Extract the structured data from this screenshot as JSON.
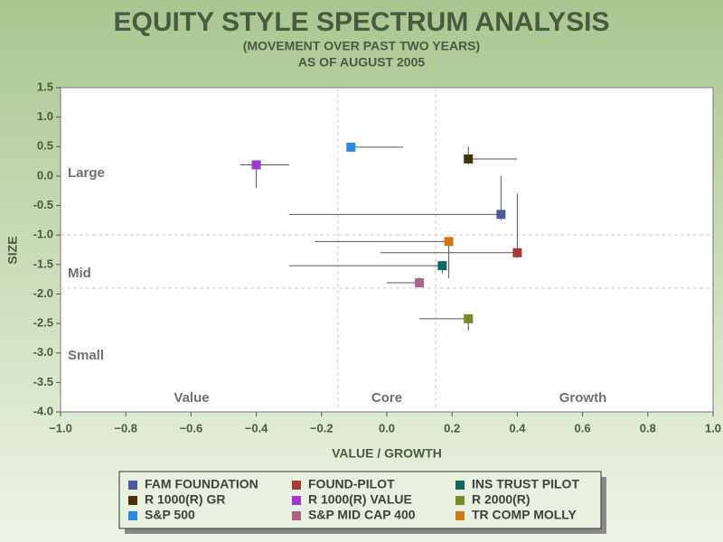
{
  "chart_data": {
    "type": "scatter",
    "title": "EQUITY STYLE SPECTRUM ANALYSIS",
    "subtitle": [
      "(MOVEMENT OVER PAST TWO YEARS)",
      "AS OF AUGUST 2005"
    ],
    "x_label": "VALUE / GROWTH",
    "y_label": "SIZE",
    "xlim": [
      -1.0,
      1.0
    ],
    "xticks": [
      {
        "value": -1.0,
        "label": "−1.0"
      },
      {
        "value": -0.8,
        "label": "−0.8"
      },
      {
        "value": -0.6,
        "label": "−0.6"
      },
      {
        "value": -0.4,
        "label": "−0.4"
      },
      {
        "value": -0.2,
        "label": "−0.2"
      },
      {
        "value": 0,
        "label": "0.0"
      },
      0.2,
      0.4,
      0.6,
      0.8,
      {
        "value": 1.0,
        "label": "1.0"
      }
    ],
    "ylim": [
      -4.0,
      1.5
    ],
    "yticks": [
      1.5,
      {
        "value": 1.0,
        "label": "1.0"
      },
      0.5,
      {
        "value": 0,
        "label": "0.0"
      },
      {
        "value": -0.5,
        "label": "-0.5"
      },
      {
        "value": -1.0,
        "label": "-1.0"
      },
      {
        "value": -1.5,
        "label": "-1.5"
      },
      {
        "value": -2.0,
        "label": "-2.0"
      },
      {
        "value": -2.5,
        "label": "-2.5"
      },
      {
        "value": -3.0,
        "label": "-3.0"
      },
      {
        "value": -3.5,
        "label": "-3.5"
      },
      {
        "value": -4.0,
        "label": "-4.0"
      }
    ],
    "reference_lines": {
      "x": [
        -0.15,
        0.15
      ],
      "y": [
        -1.0,
        -1.9
      ]
    },
    "size_regions": [
      "Large",
      "Mid",
      "Small"
    ],
    "style_regions": [
      "Value",
      "Core",
      "Growth"
    ],
    "series": [
      {
        "name": "FAM FOUNDATION",
        "color": "#4a5a9a",
        "x": 0.35,
        "y": -0.65,
        "xrange": [
          -0.3,
          0.35
        ],
        "yrange": [
          -0.75,
          0.0
        ]
      },
      {
        "name": "FOUND-PILOT",
        "color": "#a33a35",
        "x": 0.4,
        "y": -1.3,
        "xrange": [
          -0.02,
          0.4
        ],
        "yrange": [
          -1.39,
          -0.3
        ]
      },
      {
        "name": "INS TRUST PILOT",
        "color": "#106860",
        "x": 0.17,
        "y": -1.52,
        "xrange": [
          -0.3,
          0.17
        ],
        "yrange": [
          -1.65,
          -1.45
        ]
      },
      {
        "name": "R 1000(R) GR",
        "color": "#4a3210",
        "x": 0.25,
        "y": 0.29,
        "xrange": [
          0.25,
          0.4
        ],
        "yrange": [
          0.2,
          0.5
        ]
      },
      {
        "name": "R 1000(R) VALUE",
        "color": "#9a3ad0",
        "x": -0.4,
        "y": 0.19,
        "xrange": [
          -0.45,
          -0.3
        ],
        "yrange": [
          -0.2,
          0.25
        ]
      },
      {
        "name": "R 2000(R)",
        "color": "#7a8a28",
        "x": 0.25,
        "y": -2.42,
        "xrange": [
          0.1,
          0.25
        ],
        "yrange": [
          -2.62,
          -2.42
        ]
      },
      {
        "name": "S&P 500",
        "color": "#2a8ae0",
        "x": -0.11,
        "y": 0.49,
        "xrange": [
          -0.11,
          0.05
        ]
      },
      {
        "name": "S&P MID CAP 400",
        "color": "#b06088",
        "x": 0.1,
        "y": -1.81,
        "xrange": [
          0.0,
          0.1
        ],
        "yrange": [
          -1.81,
          -1.72
        ]
      },
      {
        "name": "TR COMP MOLLY",
        "color": "#d07810",
        "x": 0.19,
        "y": -1.11,
        "xrange": [
          -0.22,
          0.19
        ],
        "yrange": [
          -1.73,
          -1.11
        ]
      }
    ]
  }
}
